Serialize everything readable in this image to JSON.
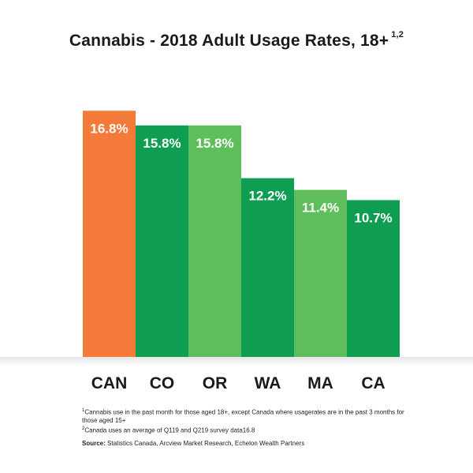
{
  "title": {
    "text": "Cannabis - 2018 Adult Usage Rates, 18+",
    "superscript": "1,2"
  },
  "chart_data": {
    "type": "bar",
    "title": "Cannabis - 2018 Adult Usage Rates, 18+",
    "categories": [
      "CAN",
      "CO",
      "OR",
      "WA",
      "MA",
      "CA"
    ],
    "values": [
      16.8,
      15.8,
      15.8,
      12.2,
      11.4,
      10.7
    ],
    "value_labels": [
      "16.8%",
      "15.8%",
      "15.8%",
      "12.2%",
      "11.4%",
      "10.7%"
    ],
    "colors": [
      "#f47a3a",
      "#0f9d52",
      "#5fbe5c",
      "#0f9d52",
      "#5fbe5c",
      "#0f9d52"
    ],
    "xlabel": "",
    "ylabel": "",
    "ylim": [
      0,
      18
    ],
    "grid": false,
    "legend": "none"
  },
  "footnotes": [
    {
      "marker": "1",
      "text": "Cannabis use in the past month for those aged 18+, except Canada where usagerates are in the past 3 months for those aged 15+"
    },
    {
      "marker": "2",
      "text": "Canada uses an average of Q119 and Q219 survey data16.8"
    }
  ],
  "source": {
    "label": "Source:",
    "text": " Statistics Canada, Arcview Market Research, Echelon Wealth Partners"
  }
}
